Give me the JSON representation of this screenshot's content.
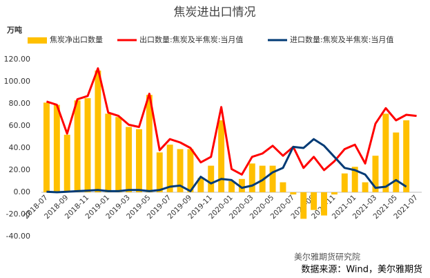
{
  "chart_data": {
    "type": "bar-line",
    "title": "焦炭进出口情况",
    "y_label": "万吨",
    "source": "数据来源：Wind，美尔雅期货",
    "watermark": "美尔雅期货研究院",
    "categories": [
      "2018-07",
      null,
      "2018-09",
      null,
      "2018-11",
      null,
      "2019-01",
      null,
      "2019-03",
      null,
      "2019-05",
      null,
      "2019-07",
      null,
      "2019-09",
      null,
      "2019-11",
      null,
      "2020-01",
      null,
      "2020-03",
      null,
      "2020-05",
      null,
      "2020-07",
      null,
      "2020-09",
      null,
      "2020-11",
      null,
      "2021-01",
      null,
      "2021-03",
      null,
      "2021-05",
      null,
      "2021-07"
    ],
    "series": [
      {
        "name": "焦炭净出口数量",
        "kind": "bar",
        "color": "#ffc000",
        "values": [
          81,
          79,
          52,
          83,
          85,
          110,
          71,
          68,
          59,
          57,
          88,
          36,
          43,
          39,
          39,
          13,
          24,
          65,
          10,
          12,
          26,
          24,
          24,
          9,
          -2,
          -24,
          -16,
          -21,
          -2,
          17,
          23,
          9,
          33,
          71,
          54,
          65,
          null
        ]
      },
      {
        "name": "出口数量:焦炭及半焦炭:当月值",
        "kind": "line",
        "color": "#ff0000",
        "values": [
          82,
          79,
          53,
          84,
          87,
          112,
          72,
          69,
          61,
          59,
          89,
          38,
          48,
          45,
          40,
          27,
          32,
          77,
          21,
          16,
          32,
          35,
          42,
          33,
          41,
          22,
          32,
          20,
          28,
          39,
          43,
          26,
          62,
          76,
          65,
          70,
          69
        ]
      },
      {
        "name": "进口数量:焦炭及半焦炭:当月值",
        "kind": "line",
        "color": "#003a75",
        "values": [
          0.5,
          0,
          0.5,
          1,
          1.5,
          2,
          1,
          1,
          2,
          2,
          1,
          2,
          5,
          6,
          1,
          14,
          8,
          12,
          11,
          4,
          6,
          11,
          18,
          22,
          41,
          40,
          48,
          42,
          32,
          22,
          20,
          16,
          4,
          5,
          11,
          5,
          null
        ]
      }
    ],
    "ylim": [
      -40,
      120
    ],
    "yticks": [
      {
        "value": -40,
        "label": "-40.00"
      },
      {
        "value": -20,
        "label": "-20.00"
      },
      {
        "value": 0,
        "label": "0.00"
      },
      {
        "value": 20,
        "label": "20.00"
      },
      {
        "value": 40,
        "label": "40.00"
      },
      {
        "value": 60,
        "label": "60.00"
      },
      {
        "value": 80,
        "label": "80.00"
      },
      {
        "value": 100,
        "label": "100.00"
      },
      {
        "value": 120,
        "label": "120.00"
      }
    ],
    "grid": false
  }
}
